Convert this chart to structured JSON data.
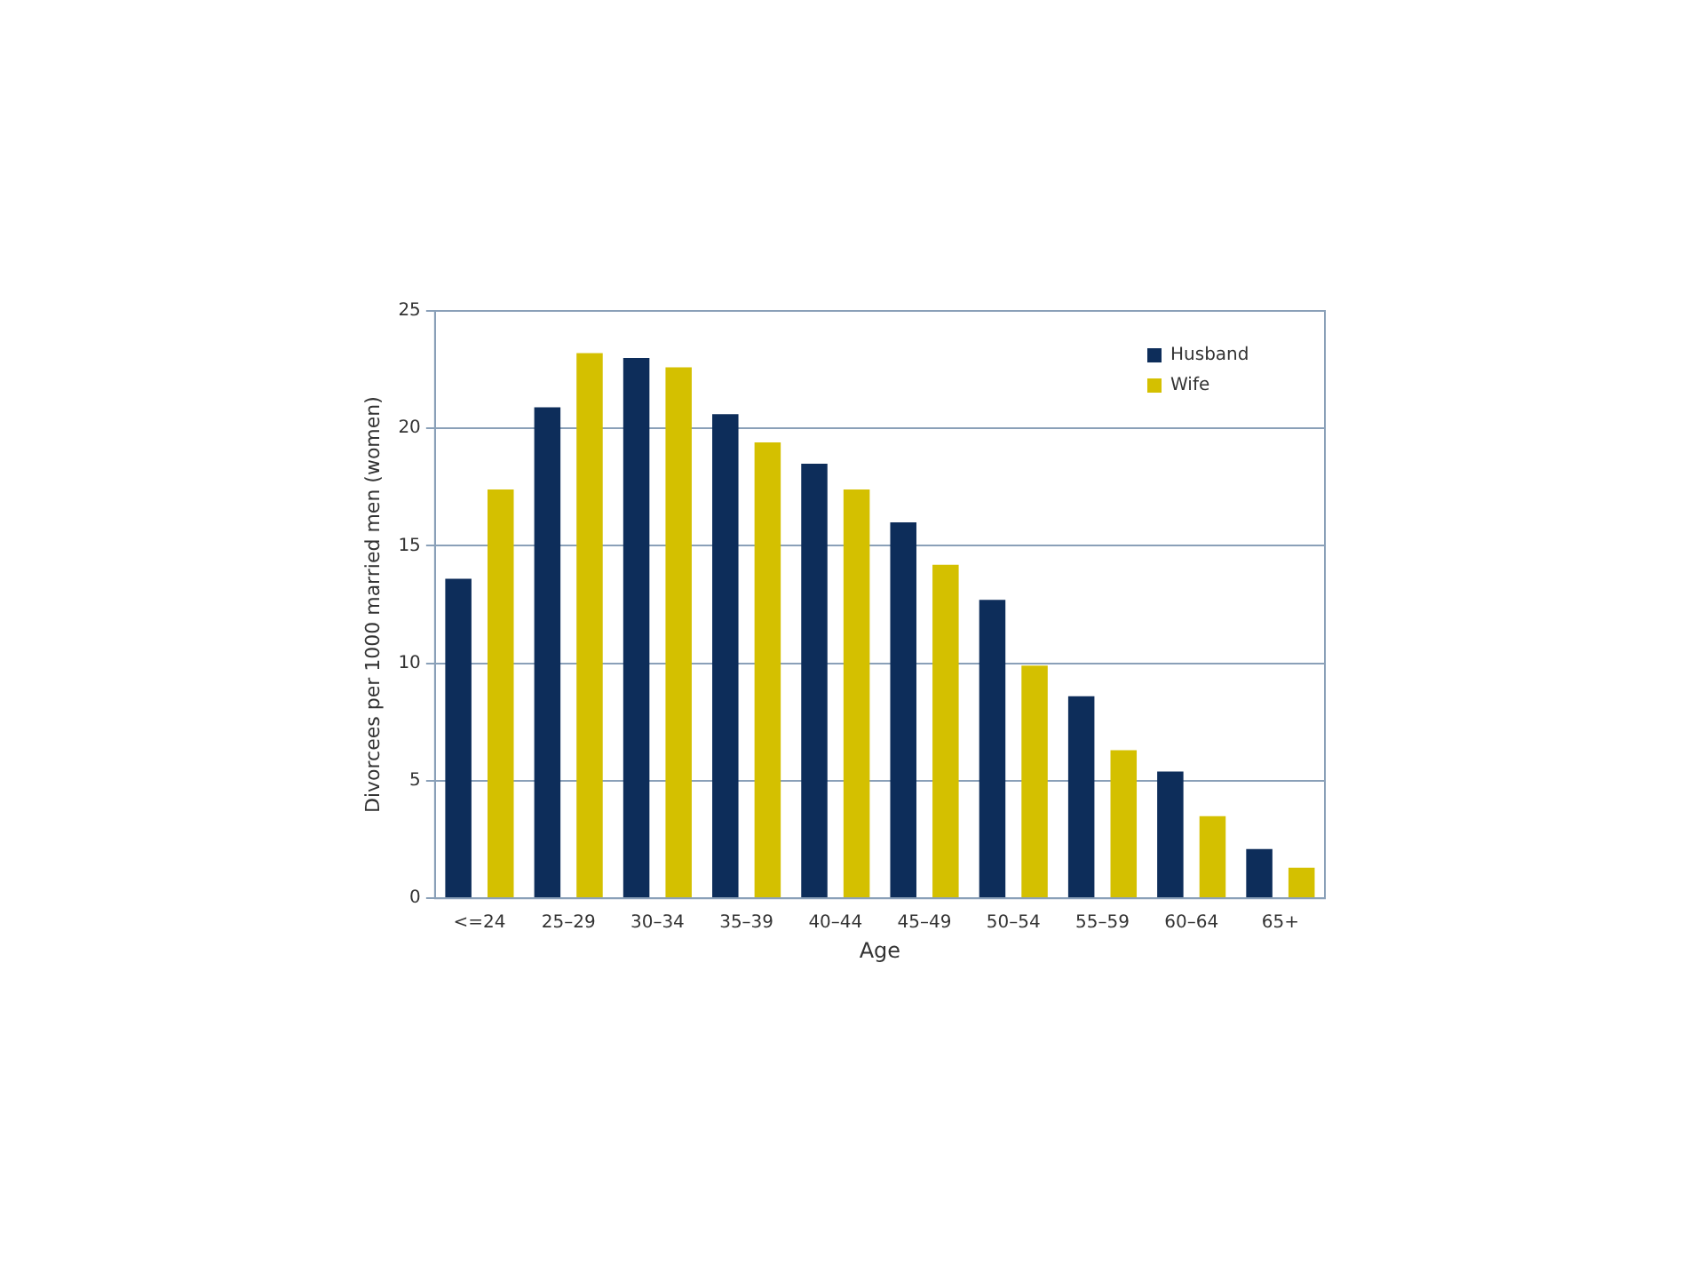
{
  "chart_data": {
    "type": "bar",
    "xlabel": "Age",
    "ylabel": "Divorcees per 1000 married men (women)",
    "categories": [
      "<=24",
      "25–29",
      "30–34",
      "35–39",
      "40–44",
      "45–49",
      "50–54",
      "55–59",
      "60–64",
      "65+"
    ],
    "series": [
      {
        "name": "Husband",
        "color": "#0d2d5a",
        "values": [
          13.6,
          20.9,
          23.0,
          20.6,
          18.5,
          16.0,
          12.7,
          8.6,
          5.4,
          2.1
        ]
      },
      {
        "name": "Wife",
        "color": "#d4c000",
        "values": [
          17.4,
          23.2,
          22.6,
          19.4,
          17.4,
          14.2,
          9.9,
          6.3,
          3.5,
          1.3
        ]
      }
    ],
    "ylim": [
      0,
      25
    ],
    "yticks": [
      0,
      5,
      10,
      15,
      20,
      25
    ],
    "grid": "y",
    "legend": "top right"
  }
}
